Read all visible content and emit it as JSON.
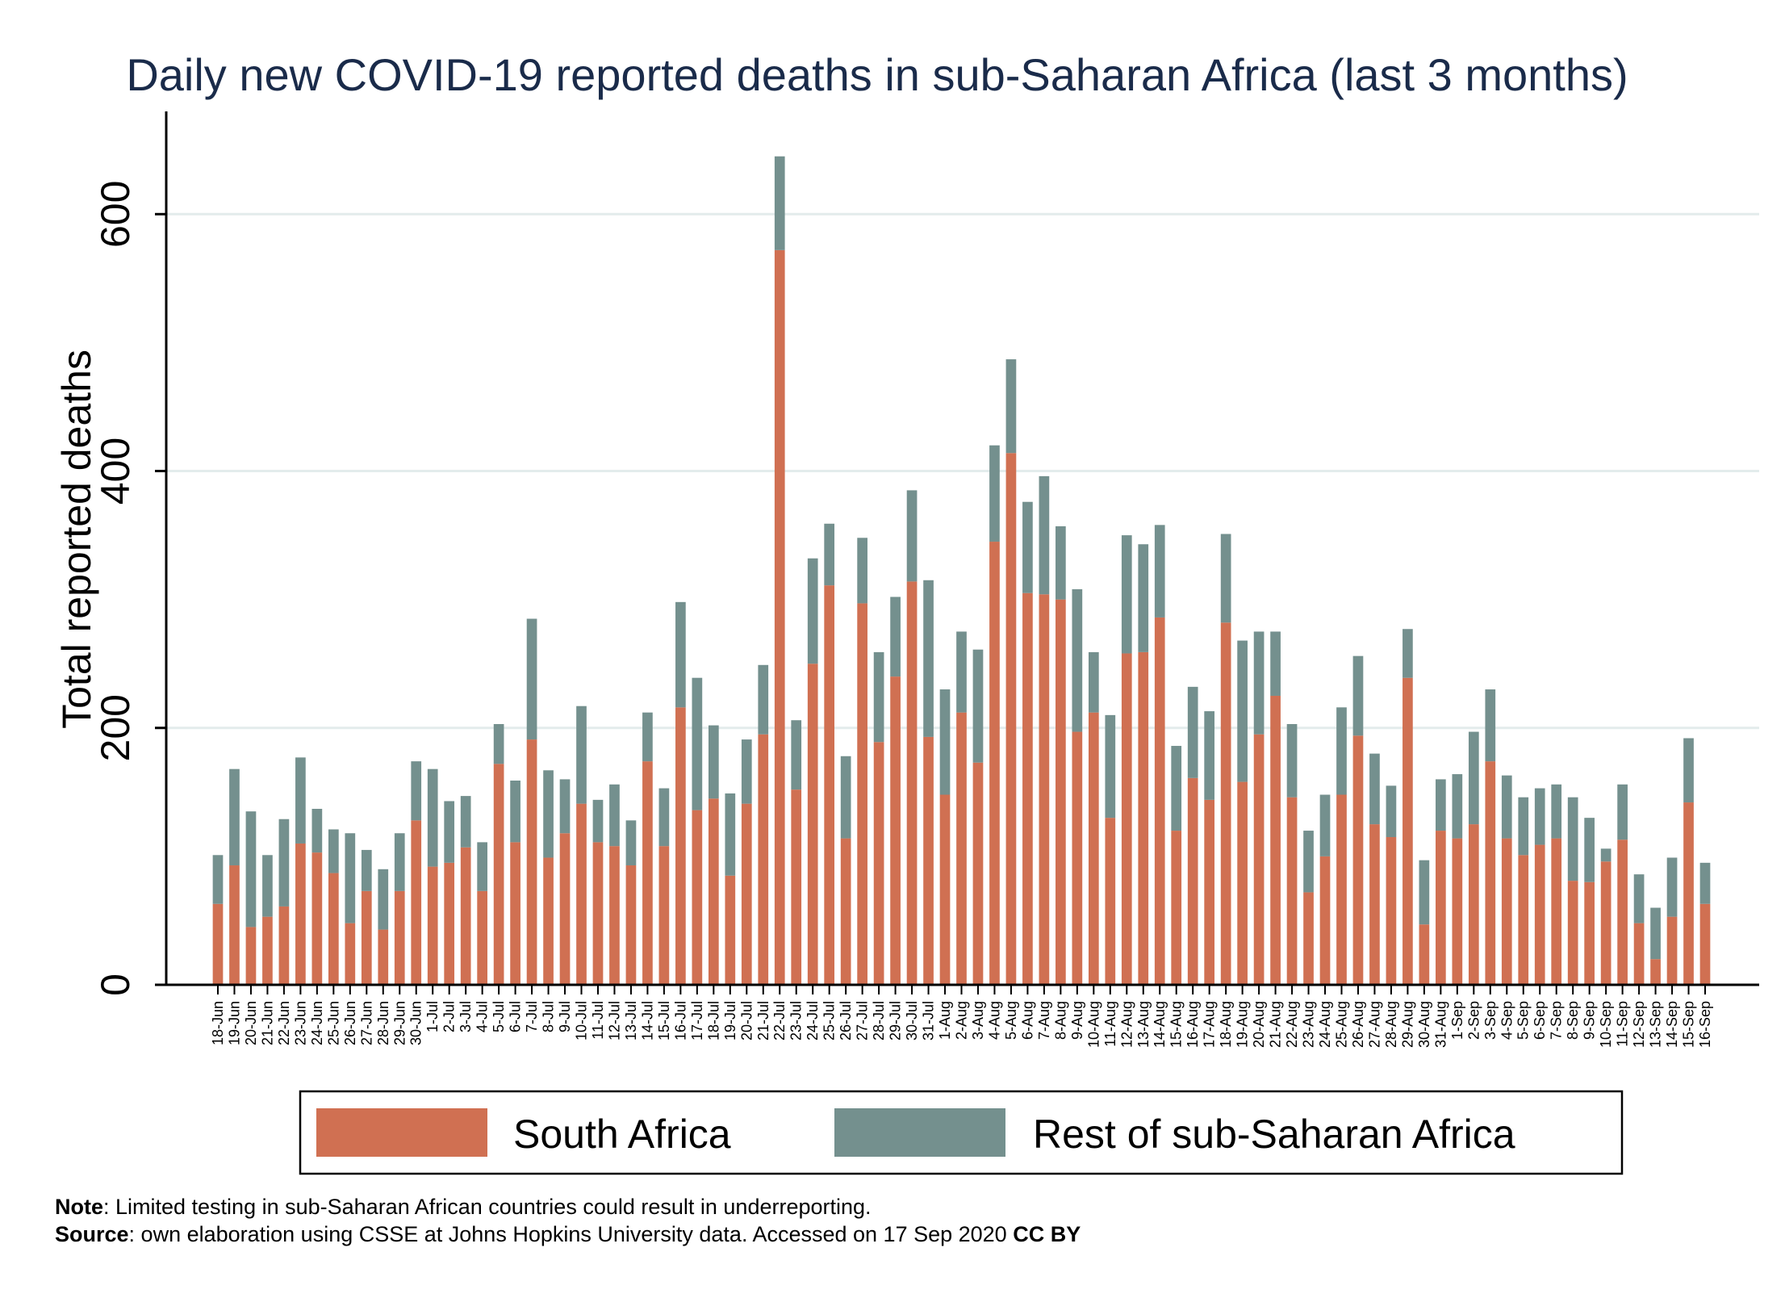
{
  "chart_data": {
    "type": "bar",
    "stacked": true,
    "title": "Daily new COVID-19 reported deaths in sub-Saharan Africa (last 3 months)",
    "xlabel": "",
    "ylabel": "Total reported deaths",
    "ylim": [
      0,
      680
    ],
    "yticks": [
      0,
      200,
      400,
      600
    ],
    "grid": true,
    "legend_position": "bottom",
    "categories": [
      "18-Jun",
      "19-Jun",
      "20-Jun",
      "21-Jun",
      "22-Jun",
      "23-Jun",
      "24-Jun",
      "25-Jun",
      "26-Jun",
      "27-Jun",
      "28-Jun",
      "29-Jun",
      "30-Jun",
      "1-Jul",
      "2-Jul",
      "3-Jul",
      "4-Jul",
      "5-Jul",
      "6-Jul",
      "7-Jul",
      "8-Jul",
      "9-Jul",
      "10-Jul",
      "11-Jul",
      "12-Jul",
      "13-Jul",
      "14-Jul",
      "15-Jul",
      "16-Jul",
      "17-Jul",
      "18-Jul",
      "19-Jul",
      "20-Jul",
      "21-Jul",
      "22-Jul",
      "23-Jul",
      "24-Jul",
      "25-Jul",
      "26-Jul",
      "27-Jul",
      "28-Jul",
      "29-Jul",
      "30-Jul",
      "31-Jul",
      "1-Aug",
      "2-Aug",
      "3-Aug",
      "4-Aug",
      "5-Aug",
      "6-Aug",
      "7-Aug",
      "8-Aug",
      "9-Aug",
      "10-Aug",
      "11-Aug",
      "12-Aug",
      "13-Aug",
      "14-Aug",
      "15-Aug",
      "16-Aug",
      "17-Aug",
      "18-Aug",
      "19-Aug",
      "20-Aug",
      "21-Aug",
      "22-Aug",
      "23-Aug",
      "24-Aug",
      "25-Aug",
      "26-Aug",
      "27-Aug",
      "28-Aug",
      "29-Aug",
      "30-Aug",
      "31-Aug",
      "1-Sep",
      "2-Sep",
      "3-Sep",
      "4-Sep",
      "5-Sep",
      "6-Sep",
      "7-Sep",
      "8-Sep",
      "9-Sep",
      "10-Sep",
      "11-Sep",
      "12-Sep",
      "13-Sep",
      "14-Sep",
      "15-Sep",
      "16-Sep"
    ],
    "series": [
      {
        "name": "South Africa",
        "color": "#D07052",
        "values": [
          63,
          93,
          45,
          53,
          61,
          110,
          103,
          87,
          48,
          73,
          43,
          73,
          128,
          92,
          95,
          107,
          73,
          172,
          111,
          191,
          99,
          118,
          141,
          111,
          108,
          93,
          174,
          108,
          216,
          136,
          145,
          85,
          141,
          195,
          572,
          152,
          250,
          311,
          114,
          297,
          189,
          240,
          314,
          193,
          148,
          212,
          173,
          345,
          414,
          305,
          304,
          300,
          197,
          212,
          130,
          258,
          259,
          286,
          120,
          161,
          144,
          282,
          158,
          195,
          225,
          146,
          72,
          100,
          148,
          194,
          125,
          115,
          239,
          47,
          120,
          114,
          125,
          174,
          114,
          101,
          109,
          114,
          81,
          80,
          96,
          113,
          48,
          20,
          53,
          142,
          63
        ]
      },
      {
        "name": "Rest of sub-Saharan Africa",
        "color": "#74908E",
        "values": [
          38,
          75,
          90,
          48,
          68,
          67,
          34,
          34,
          70,
          32,
          47,
          45,
          46,
          76,
          48,
          40,
          38,
          31,
          48,
          94,
          68,
          42,
          76,
          33,
          48,
          35,
          38,
          45,
          82,
          103,
          57,
          64,
          50,
          54,
          73,
          54,
          82,
          48,
          64,
          51,
          70,
          62,
          71,
          122,
          82,
          63,
          88,
          75,
          73,
          71,
          92,
          57,
          111,
          47,
          80,
          92,
          84,
          72,
          66,
          71,
          69,
          69,
          110,
          80,
          50,
          57,
          48,
          48,
          68,
          62,
          55,
          40,
          38,
          50,
          40,
          50,
          72,
          56,
          49,
          45,
          44,
          42,
          65,
          50,
          10,
          43,
          38,
          40,
          46,
          50,
          32
        ]
      }
    ],
    "notes": {
      "note_label": "Note",
      "note_text": ": Limited testing in sub-Saharan African countries could result in underreporting.",
      "source_label": "Source",
      "source_text": ": own elaboration using CSSE at Johns Hopkins University data.  Accessed on 17 Sep 2020 ",
      "license": "CC BY"
    }
  }
}
